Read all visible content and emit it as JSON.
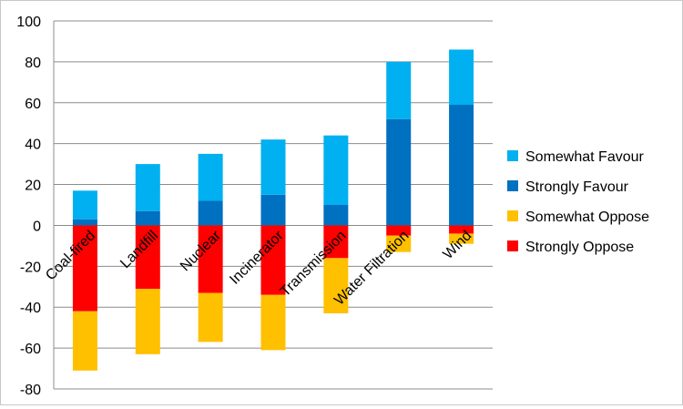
{
  "chart_data": {
    "type": "bar",
    "stacked": true,
    "categories": [
      "Coal-fired",
      "Landfill",
      "Nuclear",
      "Incinerator",
      "Transmission",
      "Water Filtration",
      "Wind"
    ],
    "series": [
      {
        "name": "Somewhat Favour",
        "color": "#00b0f0",
        "values": [
          14,
          23,
          23,
          27,
          34,
          28,
          27
        ]
      },
      {
        "name": "Strongly Favour",
        "color": "#0070c0",
        "values": [
          3,
          7,
          12,
          15,
          10,
          52,
          59
        ]
      },
      {
        "name": "Somewhat Oppose",
        "color": "#ffc000",
        "values": [
          -29,
          -32,
          -24,
          -27,
          -27,
          -8,
          -5
        ]
      },
      {
        "name": "Strongly Oppose",
        "color": "#ff0000",
        "values": [
          -42,
          -31,
          -33,
          -34,
          -16,
          -5,
          -4
        ]
      }
    ],
    "ylim": [
      -80,
      100
    ],
    "yticks": [
      "100",
      "80",
      "60",
      "40",
      "20",
      "0",
      "-20",
      "-40",
      "-60",
      "-80"
    ],
    "ytick_values": [
      100,
      80,
      60,
      40,
      20,
      0,
      -20,
      -40,
      -60,
      -80
    ],
    "grid": true,
    "legend_position": "right",
    "legend_order": [
      "Somewhat Favour",
      "Strongly Favour",
      "Somewhat Oppose",
      "Strongly Oppose"
    ]
  }
}
